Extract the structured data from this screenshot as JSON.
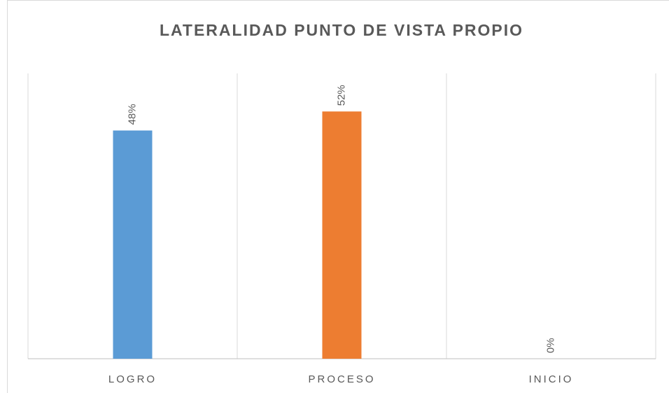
{
  "chart_data": {
    "type": "bar",
    "title": "LATERALIDAD PUNTO DE VISTA PROPIO",
    "categories": [
      "LOGRO",
      "PROCESO",
      "INICIO"
    ],
    "values": [
      48,
      52,
      0
    ],
    "value_labels": [
      "48%",
      "52%",
      "0%"
    ],
    "colors": [
      "#5b9bd5",
      "#ed7d31",
      "#a5a5a5"
    ],
    "ylim": [
      0,
      60
    ]
  }
}
